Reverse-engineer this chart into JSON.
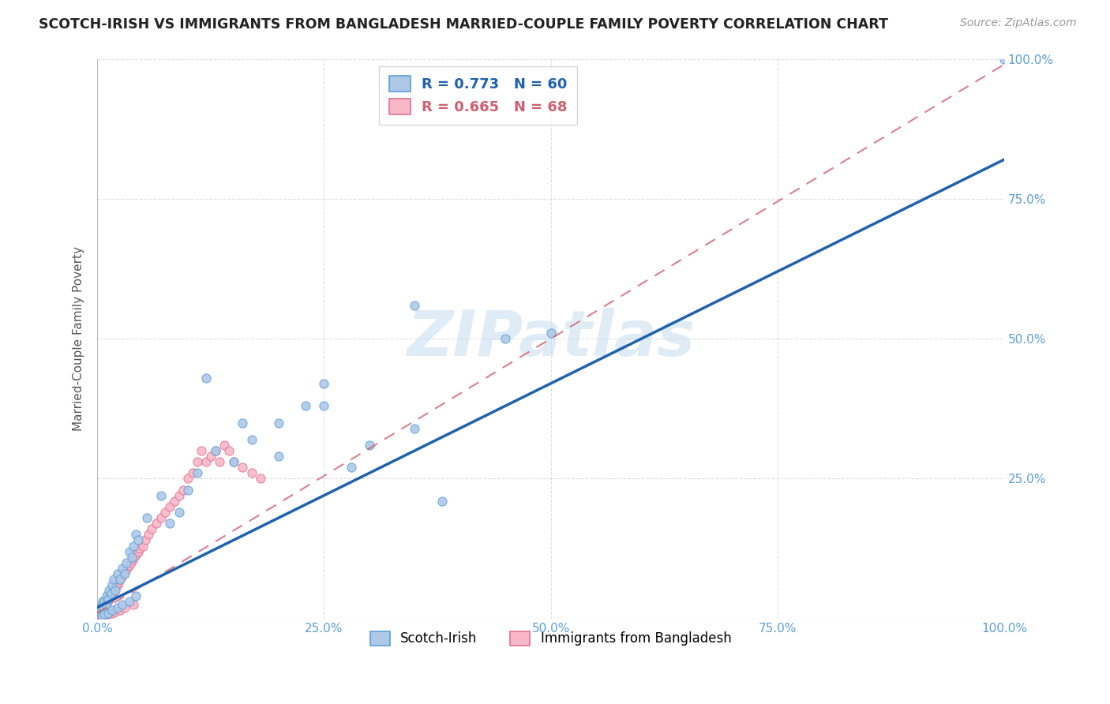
{
  "title": "SCOTCH-IRISH VS IMMIGRANTS FROM BANGLADESH MARRIED-COUPLE FAMILY POVERTY CORRELATION CHART",
  "source": "Source: ZipAtlas.com",
  "ylabel": "Married-Couple Family Poverty",
  "series1_label": "Scotch-Irish",
  "series2_label": "Immigrants from Bangladesh",
  "series1_R": 0.773,
  "series1_N": 60,
  "series2_R": 0.665,
  "series2_N": 68,
  "series1_color": "#aec9e8",
  "series2_color": "#f9b8c8",
  "series1_edge_color": "#5a9fd4",
  "series2_edge_color": "#e07090",
  "series1_line_color": "#2060b0",
  "series2_line_color": "#d06070",
  "watermark_color": "#c5ddf0",
  "grid_color": "#cccccc",
  "tick_color": "#5a9fd4",
  "title_color": "#222222",
  "source_color": "#999999"
}
